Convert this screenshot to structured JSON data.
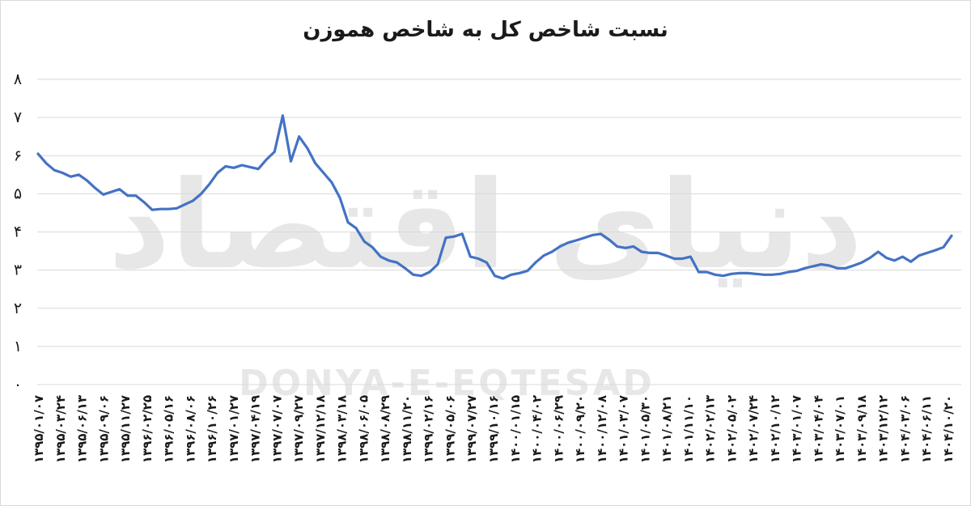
{
  "chart_data": {
    "type": "line",
    "title": "نسبت شاخص کل به شاخص هموزن",
    "xlabel": "",
    "ylabel": "",
    "ylim": [
      0,
      8
    ],
    "y_ticks": [
      "۰",
      "۱",
      "۲",
      "۳",
      "۴",
      "۵",
      "۶",
      "۷",
      "۸"
    ],
    "x_tick_labels": [
      "۱۳۹۵/۰۱/۰۷",
      "۱۳۹۵/۰۳/۲۴",
      "۱۳۹۵/۰۶/۱۳",
      "۱۳۹۵/۰۹/۰۶",
      "۱۳۹۵/۱۱/۲۷",
      "۱۳۹۶/۰۲/۲۵",
      "۱۳۹۶/۰۵/۱۶",
      "۱۳۹۶/۰۸/۰۶",
      "۱۳۹۶/۱۰/۲۶",
      "۱۳۹۷/۰۱/۲۷",
      "۱۳۹۷/۰۴/۱۹",
      "۱۳۹۷/۰۷/۰۷",
      "۱۳۹۷/۰۹/۲۷",
      "۱۳۹۷/۱۲/۱۸",
      "۱۳۹۸/۰۳/۱۸",
      "۱۳۹۸/۰۶/۰۵",
      "۱۳۹۸/۰۸/۲۹",
      "۱۳۹۸/۱۱/۲۰",
      "۱۳۹۹/۰۲/۱۶",
      "۱۳۹۹/۰۵/۰۶",
      "۱۳۹۹/۰۷/۲۷",
      "۱۳۹۹/۱۰/۱۶",
      "۱۴۰۰/۰۱/۱۵",
      "۱۴۰۰/۰۴/۰۲",
      "۱۴۰۰/۰۶/۲۹",
      "۱۴۰۰/۰۹/۲۰",
      "۱۴۰۰/۱۲/۰۸",
      "۱۴۰۱/۰۳/۰۷",
      "۱۴۰۱/۰۵/۳۰",
      "۱۴۰۱/۰۸/۲۱",
      "۱۴۰۱/۱۱/۱۰",
      "۱۴۰۲/۰۲/۱۳",
      "۱۴۰۲/۰۵/۰۲",
      "۱۴۰۲/۰۷/۲۴",
      "۱۴۰۲/۱۰/۱۲",
      "۱۴۰۳/۰۱/۰۷",
      "۱۴۰۳/۰۴/۰۴",
      "۱۴۰۳/۰۷/۰۱",
      "۱۴۰۳/۰۹/۱۸",
      "۱۴۰۳/۱۲/۱۲",
      "۱۴۰۴/۰۳/۰۶",
      "۱۴۰۴/۰۶/۱۱",
      "۱۴۰۴/۱۰/۲۰"
    ],
    "grid": true,
    "series_color": "#4472C4",
    "series": [
      {
        "values": [
          6.05,
          5.8,
          5.62,
          5.55,
          5.45,
          5.5,
          5.35,
          5.15,
          4.98,
          5.05,
          5.12,
          4.95,
          4.95,
          4.78,
          4.58,
          4.6,
          4.6,
          4.62,
          4.72,
          4.82,
          5.0,
          5.25,
          5.55,
          5.72,
          5.68,
          5.75,
          5.7,
          5.65,
          5.9,
          6.1,
          7.05,
          5.85,
          6.5,
          6.2,
          5.8,
          5.55,
          5.3,
          4.9,
          4.25,
          4.1,
          3.75,
          3.6,
          3.35,
          3.25,
          3.2,
          3.05,
          2.88,
          2.85,
          2.95,
          3.15,
          3.85,
          3.88,
          3.95,
          3.35,
          3.3,
          3.2,
          2.85,
          2.78,
          2.88,
          2.92,
          2.98,
          3.2,
          3.38,
          3.48,
          3.62,
          3.72,
          3.78,
          3.85,
          3.92,
          3.95,
          3.8,
          3.62,
          3.58,
          3.62,
          3.48,
          3.45,
          3.45,
          3.38,
          3.3,
          3.3,
          3.35,
          2.95,
          2.95,
          2.88,
          2.85,
          2.9,
          2.92,
          2.92,
          2.9,
          2.88,
          2.88,
          2.9,
          2.95,
          2.98,
          3.05,
          3.1,
          3.15,
          3.12,
          3.05,
          3.05,
          3.12,
          3.2,
          3.32,
          3.48,
          3.32,
          3.25,
          3.35,
          3.22,
          3.38,
          3.45,
          3.52,
          3.6,
          3.9
        ]
      }
    ],
    "watermark": "DONYA-E-EQTESAD",
    "watermark_logo_text": "دنیای اقتصاد"
  }
}
